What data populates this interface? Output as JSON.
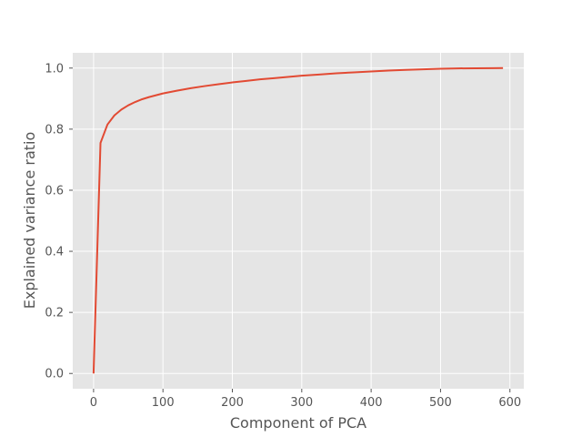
{
  "chart_data": {
    "type": "line",
    "title": "",
    "xlabel": "Component of PCA",
    "ylabel": "Explained variance ratio",
    "xlim": [
      -30,
      620
    ],
    "ylim": [
      -0.05,
      1.05
    ],
    "x_ticks": [
      0,
      100,
      200,
      300,
      400,
      500,
      600
    ],
    "y_ticks": [
      0.0,
      0.2,
      0.4,
      0.6,
      0.8,
      1.0
    ],
    "x_tick_labels": [
      "0",
      "100",
      "200",
      "300",
      "400",
      "500",
      "600"
    ],
    "y_tick_labels": [
      "0.0",
      "0.2",
      "0.4",
      "0.6",
      "0.8",
      "1.0"
    ],
    "grid": true,
    "background_color": "#e5e5e5",
    "grid_color": "#ffffff",
    "series": [
      {
        "color": "#e24a33",
        "x": [
          0,
          10,
          20,
          30,
          40,
          50,
          60,
          70,
          80,
          90,
          100,
          120,
          140,
          160,
          180,
          200,
          220,
          240,
          260,
          280,
          300,
          325,
          350,
          375,
          400,
          425,
          450,
          475,
          500,
          525,
          550,
          575,
          590
        ],
        "y": [
          0.0,
          0.755,
          0.815,
          0.845,
          0.864,
          0.878,
          0.889,
          0.898,
          0.905,
          0.911,
          0.917,
          0.926,
          0.934,
          0.941,
          0.947,
          0.953,
          0.958,
          0.963,
          0.967,
          0.971,
          0.975,
          0.979,
          0.983,
          0.986,
          0.989,
          0.992,
          0.994,
          0.996,
          0.998,
          0.999,
          0.9995,
          0.9998,
          1.0
        ]
      }
    ]
  }
}
